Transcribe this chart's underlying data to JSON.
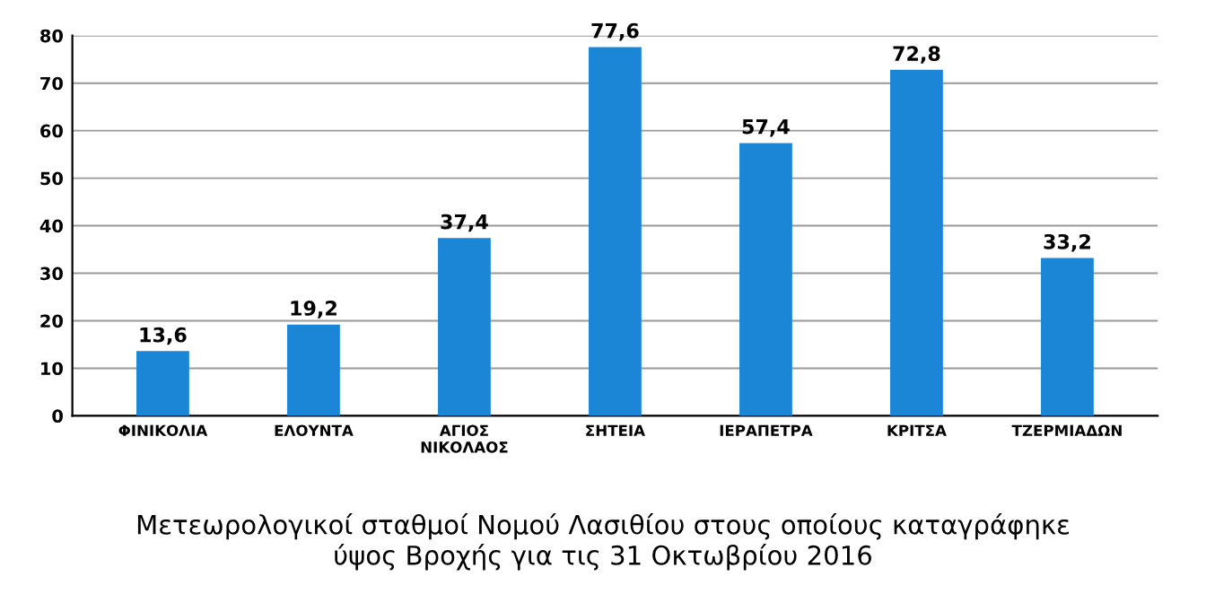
{
  "chart_data": {
    "type": "bar",
    "title": "Μετεωρολογικοί σταθμοί Νομού Λασιθίου στους οποίους καταγράφηκε\nύψος Βροχής για τις 31 Οκτωβρίου 2016",
    "categories": [
      "ΦΙΝΙΚΟΛΙΑ",
      "ΕΛΟΥΝΤΑ",
      "ΑΓΙΟΣ\nΝΙΚΟΛΑΟΣ",
      "ΣΗΤΕΙΑ",
      "ΙΕΡΑΠΕΤΡΑ",
      "ΚΡΙΤΣΑ",
      "ΤΖΕΡΜΙΑΔΩΝ"
    ],
    "values": [
      13.6,
      19.2,
      37.4,
      77.6,
      57.4,
      72.8,
      33.2
    ],
    "color": "#1c86d6",
    "ylim": [
      0,
      80
    ],
    "yticks": [
      0,
      10,
      20,
      30,
      40,
      50,
      60,
      70,
      80
    ],
    "value_labels": [
      "13,6",
      "19,2",
      "37,4",
      "77,6",
      "57,4",
      "72,8",
      "33,2"
    ],
    "grid": "y"
  }
}
